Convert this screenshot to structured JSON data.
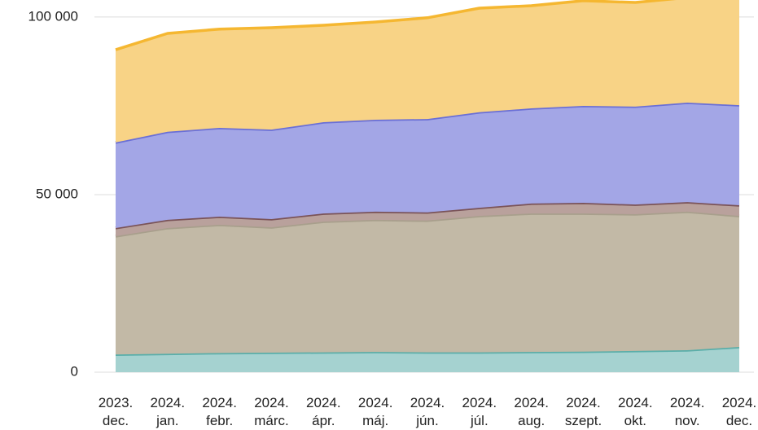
{
  "chart_data": {
    "type": "stacked_area",
    "categories": [
      "2023. dec.",
      "2024. jan.",
      "2024. febr.",
      "2024. márc.",
      "2024. ápr.",
      "2024. máj.",
      "2024. jún.",
      "2024. júl.",
      "2024. aug.",
      "2024. szept.",
      "2024. okt.",
      "2024. nov.",
      "2024. dec."
    ],
    "series": [
      {
        "color": "#5aaea9",
        "fill": "#a5d2d0",
        "values": [
          5000,
          5200,
          5400,
          5500,
          5600,
          5700,
          5600,
          5600,
          5700,
          5800,
          6000,
          6200,
          7100
        ]
      },
      {
        "color": "#a89f8c",
        "fill": "#c2b9a6",
        "values": [
          33300,
          35400,
          36100,
          35300,
          36800,
          37200,
          37100,
          38400,
          39000,
          38900,
          38500,
          39000,
          36900
        ]
      },
      {
        "color": "#7a5358",
        "fill": "#b9a19c",
        "values": [
          2300,
          2300,
          2300,
          2300,
          2300,
          2300,
          2300,
          2300,
          2800,
          3000,
          2700,
          2700,
          3000
        ]
      },
      {
        "color": "#6a6fd6",
        "fill": "#a3a6e6",
        "values": [
          24100,
          24800,
          25000,
          25200,
          25700,
          25900,
          26300,
          26900,
          26800,
          27300,
          27600,
          28000,
          28200
        ]
      },
      {
        "color": "#f5b731",
        "fill": "#f8d386",
        "values": [
          26100,
          27700,
          27800,
          28700,
          27300,
          27500,
          28500,
          29300,
          28900,
          29600,
          29300,
          29600,
          31000
        ]
      }
    ],
    "ylim": [
      0,
      104800
    ],
    "yticks": [
      0,
      {
        "value": 50000,
        "label": "50 000"
      },
      {
        "value": 100000,
        "label": "100 000"
      }
    ],
    "grid": true
  }
}
